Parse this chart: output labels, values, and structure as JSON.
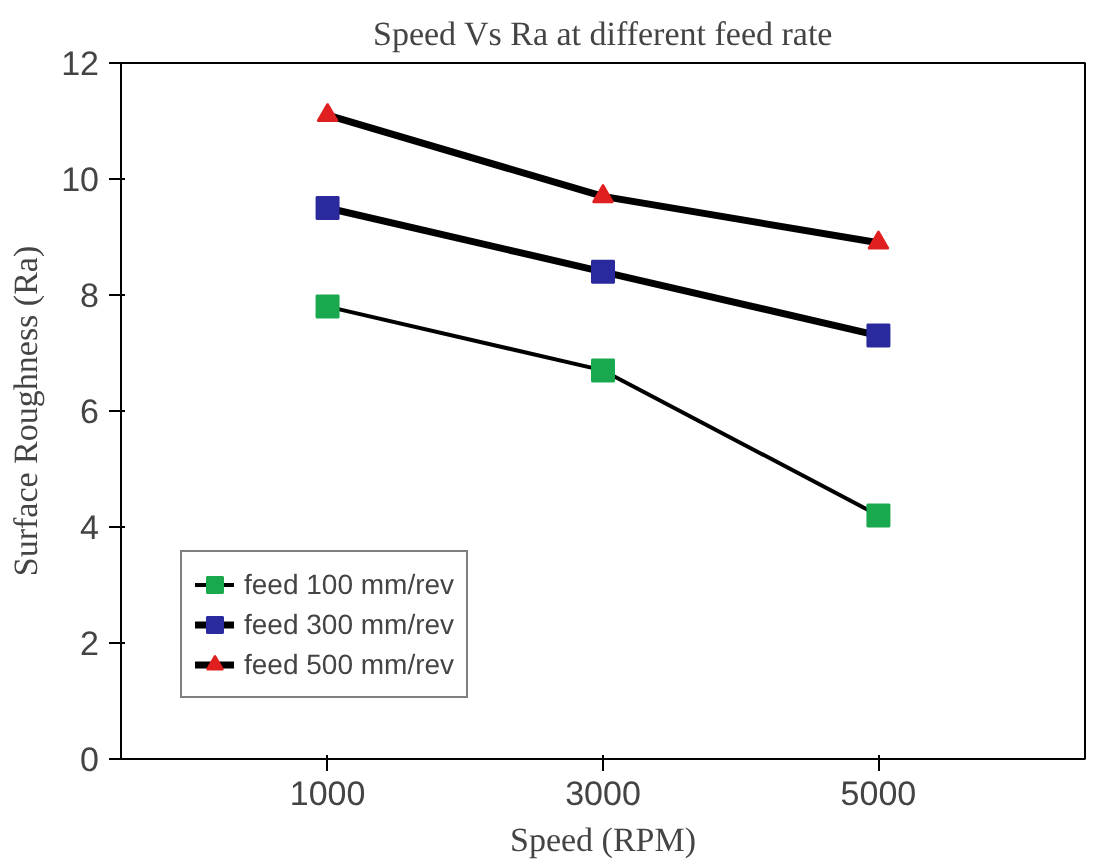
{
  "chart_data": {
    "type": "line",
    "title": "Speed Vs Ra at different feed rate",
    "xlabel": "Speed (RPM)",
    "ylabel": "Surface Roughness (Ra)",
    "categories": [
      "1000",
      "3000",
      "5000"
    ],
    "series": [
      {
        "name": "feed 100 mm/rev",
        "color": "#1aa84f",
        "marker": "square",
        "values": [
          7.8,
          6.7,
          4.2
        ]
      },
      {
        "name": "feed 300 mm/rev",
        "color": "#2a2a9e",
        "marker": "square",
        "values": [
          9.5,
          8.4,
          7.3
        ]
      },
      {
        "name": "feed 500 mm/rev",
        "color": "#e02020",
        "marker": "triangle",
        "values": [
          11.1,
          9.7,
          8.9
        ]
      }
    ],
    "ylim": [
      0,
      12
    ],
    "yticks": [
      0,
      2,
      4,
      6,
      8,
      10,
      12
    ],
    "grid": false,
    "legend": "bottom left",
    "line_style": "solid"
  }
}
